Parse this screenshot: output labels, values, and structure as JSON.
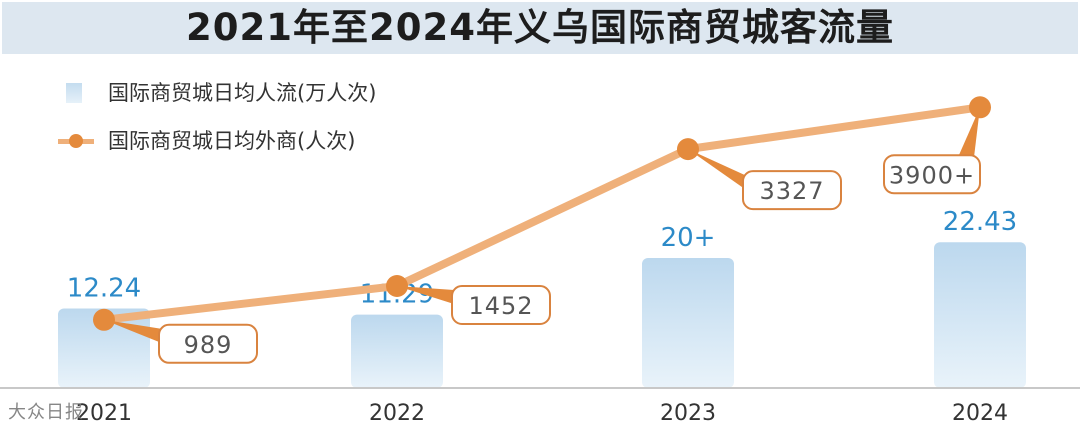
{
  "title": "2021年至2024年义乌国际商贸城客流量",
  "watermark": "大众日报",
  "legend": {
    "bar_label": "国际商贸城日均人流(万人次)",
    "line_label": "国际商贸城日均外商(人次)"
  },
  "colors": {
    "bar_top": "#bcd8ee",
    "bar_bottom": "#e9f3fa",
    "bar_value": "#2c8ac8",
    "line": "#efb07a",
    "point": "#e48a3c",
    "callout_border": "#d9833f",
    "callout_text": "#555555",
    "axis": "#c8c8c8"
  },
  "chart_data": {
    "type": "bar",
    "categories": [
      "2021",
      "2022",
      "2023",
      "2024"
    ],
    "series": [
      {
        "name": "国际商贸城日均人流(万人次)",
        "type": "bar",
        "values": [
          12.24,
          11.29,
          20,
          22.43
        ],
        "labels": [
          "12.24",
          "11.29",
          "20+",
          "22.43"
        ]
      },
      {
        "name": "国际商贸城日均外商(人次)",
        "type": "line",
        "values": [
          989,
          1452,
          3327,
          3900
        ],
        "labels": [
          "989",
          "1452",
          "3327",
          "3900+"
        ]
      }
    ],
    "grid": false,
    "legend_position": "top-left"
  }
}
